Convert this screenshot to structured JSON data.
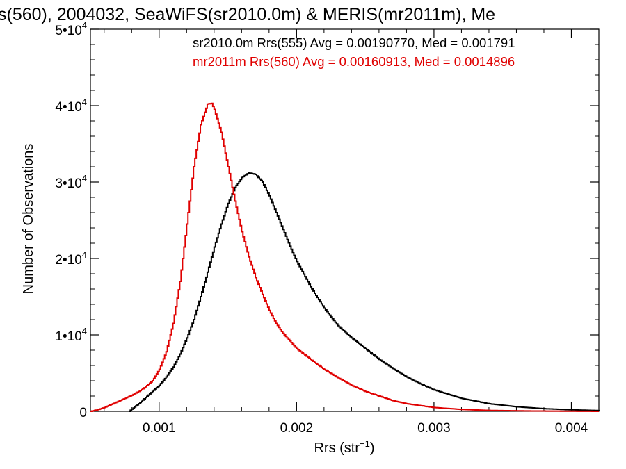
{
  "chart_data": {
    "type": "line",
    "title": "s(560), 2004032, SeaWiFS(sr2010.0m) & MERIS(mr2011m), Me",
    "xlabel": "Rrs (str",
    "xlabel_exponent": "−1",
    "xlabel_suffix": ")",
    "ylabel": "Number of Observations",
    "xlim": [
      0.0005,
      0.0042
    ],
    "ylim": [
      0,
      50000
    ],
    "x_ticks": [
      {
        "value": 0.001,
        "label": "0.001"
      },
      {
        "value": 0.002,
        "label": "0.002"
      },
      {
        "value": 0.003,
        "label": "0.003"
      },
      {
        "value": 0.004,
        "label": "0.004"
      }
    ],
    "y_ticks": [
      {
        "value": 0,
        "mantissa": "0",
        "exponent": ""
      },
      {
        "value": 10000,
        "mantissa": "1•10",
        "exponent": "4"
      },
      {
        "value": 20000,
        "mantissa": "2•10",
        "exponent": "4"
      },
      {
        "value": 30000,
        "mantissa": "3•10",
        "exponent": "4"
      },
      {
        "value": 40000,
        "mantissa": "4•10",
        "exponent": "4"
      },
      {
        "value": 50000,
        "mantissa": "5•10",
        "exponent": "4"
      }
    ],
    "grid": false,
    "legend_position": "top-right",
    "series": [
      {
        "name": "sr2010.0m Rrs(555) Avg = 0.00190770, Med = 0.001791",
        "color": "#000000",
        "points": [
          [
            0.00078,
            0
          ],
          [
            0.00085,
            1000
          ],
          [
            0.0009,
            1800
          ],
          [
            0.00095,
            2600
          ],
          [
            0.001,
            3400
          ],
          [
            0.00105,
            4500
          ],
          [
            0.0011,
            5800
          ],
          [
            0.00115,
            7500
          ],
          [
            0.0012,
            9600
          ],
          [
            0.00125,
            12000
          ],
          [
            0.0013,
            15000
          ],
          [
            0.00135,
            18200
          ],
          [
            0.0014,
            21500
          ],
          [
            0.00145,
            24500
          ],
          [
            0.0015,
            27200
          ],
          [
            0.00155,
            29300
          ],
          [
            0.0016,
            30600
          ],
          [
            0.00165,
            31200
          ],
          [
            0.0017,
            31000
          ],
          [
            0.00175,
            30000
          ],
          [
            0.0018,
            28200
          ],
          [
            0.00185,
            26000
          ],
          [
            0.0019,
            23800
          ],
          [
            0.00195,
            21600
          ],
          [
            0.002,
            19600
          ],
          [
            0.0021,
            16300
          ],
          [
            0.0022,
            13500
          ],
          [
            0.0023,
            11200
          ],
          [
            0.0024,
            9600
          ],
          [
            0.0025,
            8200
          ],
          [
            0.0026,
            6800
          ],
          [
            0.0027,
            5600
          ],
          [
            0.0028,
            4500
          ],
          [
            0.0029,
            3600
          ],
          [
            0.003,
            2800
          ],
          [
            0.0032,
            1700
          ],
          [
            0.0034,
            1000
          ],
          [
            0.0036,
            600
          ],
          [
            0.0038,
            350
          ],
          [
            0.004,
            200
          ],
          [
            0.0042,
            100
          ]
        ]
      },
      {
        "name": "mr2011m Rrs(560) Avg = 0.00160913, Med = 0.0014896",
        "color": "#e00000",
        "points": [
          [
            0.0005,
            0
          ],
          [
            0.00055,
            200
          ],
          [
            0.0006,
            500
          ],
          [
            0.00065,
            900
          ],
          [
            0.0007,
            1300
          ],
          [
            0.00075,
            1700
          ],
          [
            0.0008,
            2100
          ],
          [
            0.00085,
            2600
          ],
          [
            0.0009,
            3200
          ],
          [
            0.00095,
            4000
          ],
          [
            0.001,
            5500
          ],
          [
            0.00105,
            7800
          ],
          [
            0.0011,
            11500
          ],
          [
            0.00115,
            17000
          ],
          [
            0.0012,
            24500
          ],
          [
            0.00125,
            32000
          ],
          [
            0.0013,
            37500
          ],
          [
            0.00135,
            40200
          ],
          [
            0.00138,
            40300
          ],
          [
            0.0014,
            39500
          ],
          [
            0.00145,
            36500
          ],
          [
            0.0015,
            32000
          ],
          [
            0.00155,
            27500
          ],
          [
            0.0016,
            23500
          ],
          [
            0.00165,
            20200
          ],
          [
            0.0017,
            17500
          ],
          [
            0.00175,
            15300
          ],
          [
            0.0018,
            13200
          ],
          [
            0.00185,
            11500
          ],
          [
            0.0019,
            10200
          ],
          [
            0.002,
            8200
          ],
          [
            0.0021,
            6800
          ],
          [
            0.0022,
            5500
          ],
          [
            0.0023,
            4400
          ],
          [
            0.0024,
            3400
          ],
          [
            0.0025,
            2600
          ],
          [
            0.0026,
            2000
          ],
          [
            0.0027,
            1400
          ],
          [
            0.0028,
            1000
          ],
          [
            0.003,
            500
          ],
          [
            0.0032,
            250
          ],
          [
            0.0034,
            120
          ],
          [
            0.0037,
            50
          ],
          [
            0.0042,
            0
          ]
        ]
      }
    ]
  }
}
